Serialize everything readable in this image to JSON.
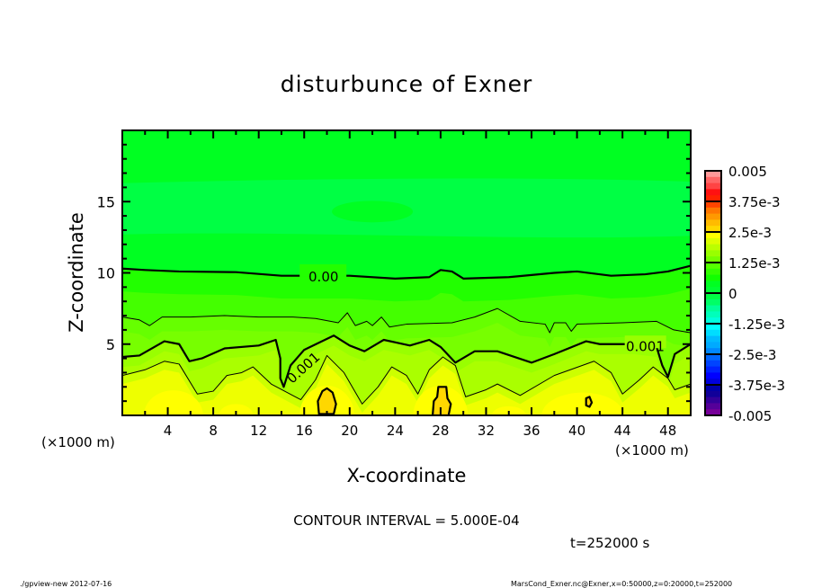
{
  "chart_data": {
    "type": "contour",
    "title": "disturbunce of Exner",
    "xlabel": "X-coordinate",
    "ylabel": "Z-coordinate",
    "x_unit": "(×1000 m)",
    "y_unit": "(×1000 m)",
    "xlim": [
      0,
      50
    ],
    "ylim": [
      0,
      20
    ],
    "xticks": [
      4,
      8,
      12,
      16,
      20,
      24,
      28,
      32,
      36,
      40,
      44,
      48
    ],
    "yticks": [
      5,
      10,
      15
    ],
    "contour_interval": "CONTOUR INTERVAL = 5.000E-04",
    "time": "t=252000 s",
    "colorbar": {
      "range": [
        -0.005,
        0.005
      ],
      "tick_labels": [
        "0.005",
        "3.75e-3",
        "2.5e-3",
        "1.25e-3",
        "0",
        "-1.25e-3",
        "-2.5e-3",
        "-3.75e-3",
        "-0.005"
      ],
      "colors": [
        "#ff9999",
        "#ff6666",
        "#ff4444",
        "#ff1111",
        "#ff2200",
        "#ff4400",
        "#ff7700",
        "#ff9900",
        "#ffbb00",
        "#ffd700",
        "#ffff00",
        "#ddff00",
        "#bbff00",
        "#99ff00",
        "#77ff00",
        "#55ff00",
        "#33ff00",
        "#11ff00",
        "#00ff22",
        "#00ff33",
        "#00ff44",
        "#00ff66",
        "#00ff99",
        "#00ffbb",
        "#00ffdd",
        "#00ffff",
        "#00ddff",
        "#00bbff",
        "#00aaff",
        "#0088ff",
        "#0066ff",
        "#0044ff",
        "#0022ff",
        "#0000ff",
        "#0000dd",
        "#0000aa",
        "#110099",
        "#330099",
        "#550099",
        "#770099"
      ]
    },
    "contours": [
      {
        "level": 0.0,
        "label": "0.00",
        "thick": true,
        "points": [
          [
            0,
            10.3
          ],
          [
            2,
            10.2
          ],
          [
            5,
            10.1
          ],
          [
            10,
            10.05
          ],
          [
            14,
            9.8
          ],
          [
            17,
            9.8
          ],
          [
            20,
            9.8
          ],
          [
            24,
            9.6
          ],
          [
            27,
            9.7
          ],
          [
            28,
            10.2
          ],
          [
            29,
            10.1
          ],
          [
            30,
            9.6
          ],
          [
            34,
            9.7
          ],
          [
            38,
            10.0
          ],
          [
            40,
            10.1
          ],
          [
            43,
            9.8
          ],
          [
            46,
            9.9
          ],
          [
            48,
            10.1
          ],
          [
            50,
            10.5
          ]
        ]
      },
      {
        "level": 0.0005,
        "label": "",
        "thick": false,
        "points": [
          [
            0,
            6.9
          ],
          [
            1.5,
            6.7
          ],
          [
            2.4,
            6.3
          ],
          [
            3.5,
            6.9
          ],
          [
            6,
            6.9
          ],
          [
            9,
            7.0
          ],
          [
            12,
            6.9
          ],
          [
            15,
            6.9
          ],
          [
            17,
            6.8
          ],
          [
            19,
            6.5
          ],
          [
            19.8,
            7.2
          ],
          [
            20.5,
            6.3
          ],
          [
            21.5,
            6.6
          ],
          [
            22,
            6.3
          ],
          [
            22.8,
            6.9
          ],
          [
            23.5,
            6.2
          ],
          [
            25,
            6.4
          ],
          [
            29,
            6.5
          ],
          [
            31,
            6.9
          ],
          [
            33,
            7.5
          ],
          [
            35,
            6.6
          ],
          [
            37.2,
            6.4
          ],
          [
            37.6,
            5.8
          ],
          [
            38,
            6.5
          ],
          [
            39,
            6.5
          ],
          [
            39.5,
            5.9
          ],
          [
            40,
            6.4
          ],
          [
            44,
            6.5
          ],
          [
            47,
            6.6
          ],
          [
            48.5,
            6.0
          ],
          [
            50,
            5.8
          ]
        ]
      },
      {
        "level": 0.001,
        "label": "0.001",
        "thick": true,
        "points": [
          [
            0,
            4.1
          ],
          [
            1.5,
            4.2
          ],
          [
            3.7,
            5.2
          ],
          [
            5,
            5.0
          ],
          [
            5.9,
            3.8
          ],
          [
            7,
            4.0
          ],
          [
            9,
            4.7
          ],
          [
            12,
            4.9
          ],
          [
            13.5,
            5.3
          ],
          [
            13.9,
            4.0
          ],
          [
            13.9,
            2.6
          ],
          [
            14.2,
            2.0
          ],
          [
            14.8,
            3.5
          ],
          [
            16,
            4.6
          ],
          [
            18.6,
            5.6
          ],
          [
            20,
            4.9
          ],
          [
            21.3,
            4.5
          ],
          [
            23,
            5.3
          ],
          [
            25.3,
            4.9
          ],
          [
            27,
            5.3
          ],
          [
            28,
            4.8
          ],
          [
            29.3,
            3.7
          ],
          [
            31,
            4.5
          ],
          [
            33,
            4.5
          ],
          [
            36,
            3.7
          ],
          [
            38,
            4.3
          ],
          [
            40.8,
            5.2
          ],
          [
            42,
            5.0
          ],
          [
            45,
            5.0
          ],
          [
            47,
            4.8
          ],
          [
            47.5,
            3.5
          ],
          [
            48,
            2.7
          ],
          [
            48.6,
            4.3
          ],
          [
            50,
            5.0
          ]
        ]
      },
      {
        "level": 0.0015,
        "label": "",
        "thick": false,
        "points": [
          [
            0,
            2.8
          ],
          [
            2,
            3.2
          ],
          [
            3.7,
            3.8
          ],
          [
            5,
            3.6
          ],
          [
            6.6,
            1.5
          ],
          [
            8,
            1.7
          ],
          [
            9.2,
            2.8
          ],
          [
            10.5,
            3.0
          ],
          [
            11.5,
            3.4
          ],
          [
            13.1,
            2.2
          ],
          [
            15.7,
            1.1
          ],
          [
            17,
            2.5
          ],
          [
            18,
            4.2
          ],
          [
            19.5,
            3.0
          ],
          [
            21.1,
            0.8
          ],
          [
            22.5,
            2.0
          ],
          [
            23.7,
            3.4
          ],
          [
            25,
            2.8
          ],
          [
            26,
            1.5
          ],
          [
            27,
            3.2
          ],
          [
            28.2,
            4.1
          ],
          [
            29.3,
            3.5
          ],
          [
            30.2,
            1.3
          ],
          [
            32,
            1.8
          ],
          [
            33,
            2.2
          ],
          [
            35,
            1.4
          ],
          [
            38,
            2.8
          ],
          [
            41.5,
            3.8
          ],
          [
            43,
            3.0
          ],
          [
            44,
            1.5
          ],
          [
            45.5,
            2.5
          ],
          [
            46.7,
            3.4
          ],
          [
            48,
            2.6
          ],
          [
            48.6,
            1.8
          ],
          [
            50,
            2.2
          ]
        ]
      },
      {
        "level": 0.002,
        "label": "",
        "thick": true,
        "closed": true,
        "points": [
          [
            17.3,
            0.1
          ],
          [
            17.2,
            1.0
          ],
          [
            17.6,
            1.7
          ],
          [
            18.0,
            1.9
          ],
          [
            18.5,
            1.6
          ],
          [
            18.8,
            0.8
          ],
          [
            18.6,
            0.1
          ]
        ]
      },
      {
        "level": 0.002,
        "label": "",
        "thick": true,
        "closed": true,
        "points": [
          [
            27.3,
            0.0
          ],
          [
            27.4,
            1.0
          ],
          [
            27.7,
            1.3
          ],
          [
            27.8,
            2.0
          ],
          [
            28.5,
            2.0
          ],
          [
            28.6,
            1.2
          ],
          [
            28.9,
            0.8
          ],
          [
            28.7,
            0.0
          ]
        ]
      },
      {
        "level": 0.002,
        "label": "",
        "thick": true,
        "closed": true,
        "points": [
          [
            40.8,
            0.7
          ],
          [
            40.8,
            1.2
          ],
          [
            41.1,
            1.3
          ],
          [
            41.3,
            0.9
          ],
          [
            41.1,
            0.6
          ]
        ]
      }
    ],
    "grid": false
  },
  "footer": {
    "left": "./gpview-new  2012-07-16",
    "right": "MarsCond_Exner.nc@Exner,x=0:50000,z=0:20000,t=252000"
  }
}
